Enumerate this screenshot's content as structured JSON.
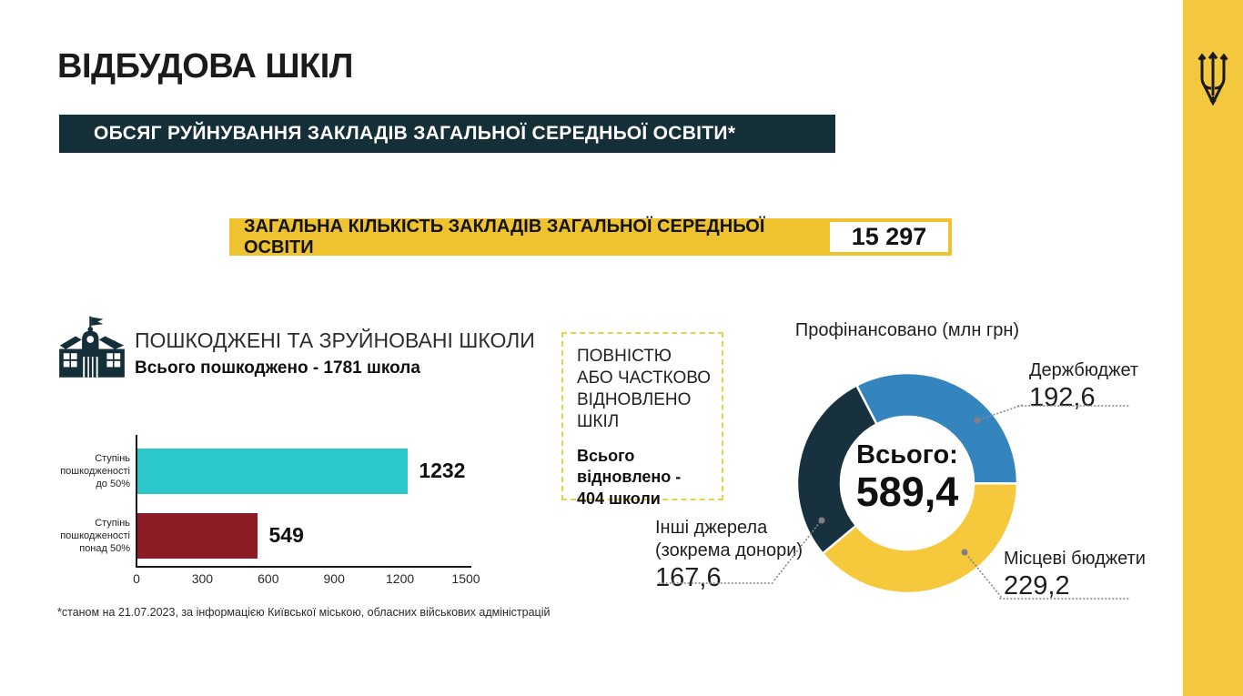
{
  "page": {
    "title": "ВІДБУДОВА ШКІЛ",
    "banner": "ОБСЯГ РУЙНУВАННЯ ЗАКЛАДІВ ЗАГАЛЬНОЇ СЕРЕДНЬОЇ ОСВІТИ*",
    "footnote": "*станом на 21.07.2023, за інформацією Київської міською, обласних військових адміністрацій"
  },
  "total_banner": {
    "label": "ЗАГАЛЬНА КІЛЬКІСТЬ ЗАКЛАДІВ ЗАГАЛЬНОЇ СЕРЕДНЬОЇ ОСВІТИ",
    "value": "15 297"
  },
  "damaged": {
    "heading": "ПОШКОДЖЕНІ ТА ЗРУЙНОВАНІ ШКОЛИ",
    "subtitle": "Всього пошкоджено - 1781 школа"
  },
  "restored": {
    "title": "ПОВНІСТЮ\nАБО ЧАСТКОВО\nВІДНОВЛЕНО\nШКІЛ",
    "subtitle": "Всього\nвідновлено -\n404 школи"
  },
  "colors": {
    "dark": "#152F38",
    "banner-yellow": "#EFC230",
    "stripe-yellow": "#F3C73E",
    "dash-yellow": "#E9D24B"
  },
  "chart_data": [
    {
      "type": "bar",
      "orientation": "horizontal",
      "title": "ПОШКОДЖЕНІ ТА ЗРУЙНОВАНІ ШКОЛИ",
      "subtitle": "Всього пошкоджено - 1781 школа",
      "categories": [
        "Ступінь\nпошкодженості\nдо 50%",
        "Ступінь\nпошкодженості\nпонад 50%"
      ],
      "values": [
        1232,
        549
      ],
      "value_labels": [
        "1232",
        "549"
      ],
      "bar_colors": [
        "#2BC7C9",
        "#8C1B26"
      ],
      "xlim": [
        0,
        1500
      ],
      "xticks": [
        0,
        300,
        600,
        900,
        1200,
        1500
      ],
      "xlabel": "",
      "ylabel": "",
      "grid": false,
      "legend": false
    },
    {
      "type": "pie",
      "subtype": "donut",
      "title": "Профінансовано (млн грн)",
      "center_label": "Всього:",
      "center_value": "589,4",
      "total": 589.4,
      "start_angle_deg": -27.4,
      "slices": [
        {
          "name": "Держбюджет",
          "value": 192.6,
          "display": "192,6",
          "color": "#3484BE"
        },
        {
          "name": "Місцеві бюджети",
          "value": 229.2,
          "display": "229,2",
          "color": "#F5C93B"
        },
        {
          "name": "Інші джерела\n(зокрема донори)",
          "value": 167.6,
          "display": "167,6",
          "color": "#17323E"
        }
      ],
      "legend": false
    }
  ]
}
